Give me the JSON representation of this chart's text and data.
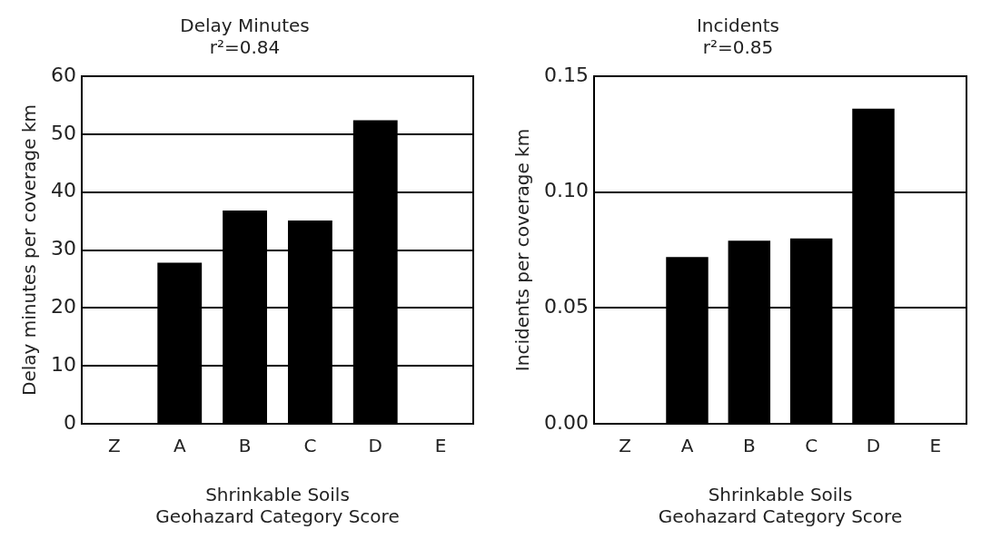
{
  "chart_data": [
    {
      "type": "bar",
      "title": "Delay Minutes",
      "subtitle": "r²=0.84",
      "ylabel": "Delay minutes per coverage km",
      "xlabel": "Shrinkable Soils\nGeohazard Category Score",
      "categories": [
        "Z",
        "A",
        "B",
        "C",
        "D",
        "E"
      ],
      "values": [
        null,
        27.8,
        36.8,
        35.1,
        52.4,
        null
      ],
      "color": "#000000",
      "ylim": [
        0,
        60
      ],
      "yticks": [
        0,
        10,
        20,
        30,
        40,
        50,
        60
      ],
      "grid": "y",
      "legend": false
    },
    {
      "type": "bar",
      "title": "Incidents",
      "subtitle": "r²=0.85",
      "ylabel": "Incidents per coverage km",
      "xlabel": "Shrinkable Soils\nGeohazard Category Score",
      "categories": [
        "Z",
        "A",
        "B",
        "C",
        "D",
        "E"
      ],
      "values": [
        null,
        0.072,
        0.079,
        0.08,
        0.136,
        null
      ],
      "color": "#000000",
      "ylim": [
        0,
        0.15
      ],
      "yticks": [
        {
          "value": 0,
          "label": "0.00"
        },
        {
          "value": 0.05,
          "label": "0.05"
        },
        {
          "value": 0.1,
          "label": "0.10"
        },
        {
          "value": 0.15,
          "label": "0.15"
        }
      ],
      "grid": "y",
      "legend": false
    }
  ]
}
